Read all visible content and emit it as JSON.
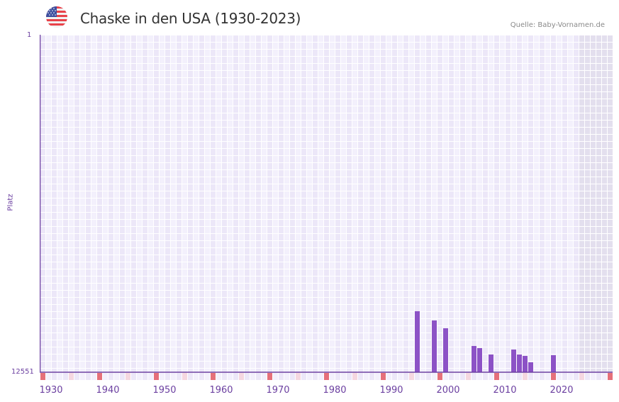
{
  "header": {
    "title": "Chaske in den USA (1930-2023)",
    "source": "Quelle: Baby-Vornamen.de",
    "flag_icon": "usa-flag-icon"
  },
  "axes": {
    "y_top_label": "1",
    "y_bottom_label": "12551",
    "y_title": "Platz",
    "x_ticks": [
      "1930",
      "1940",
      "1950",
      "1960",
      "1970",
      "1980",
      "1990",
      "2000",
      "2010",
      "2020"
    ]
  },
  "colors": {
    "bar": "#8c52c6",
    "axis": "#6b3fa0",
    "grid_light": "#f3f0fc",
    "grid_dark": "#ece7f8",
    "future_shade": "#e3dfee",
    "decade_marker": "#e5707a",
    "half_decade_marker": "#f5d7e0"
  },
  "chart_data": {
    "type": "bar",
    "title": "Chaske in den USA (1930-2023)",
    "xlabel": "",
    "ylabel": "Platz",
    "ylim": [
      12551,
      1
    ],
    "y_inverted": true,
    "x_range": [
      1929,
      2029
    ],
    "shaded_region_from": 2023,
    "grid": true,
    "legend": null,
    "categories": [
      1995,
      1998,
      2000,
      2005,
      2006,
      2008,
      2012,
      2013,
      2014,
      2015,
      2019
    ],
    "values": [
      10283,
      10625,
      10916,
      11575,
      11654,
      11891,
      11707,
      11891,
      11944,
      12182,
      11917
    ]
  }
}
